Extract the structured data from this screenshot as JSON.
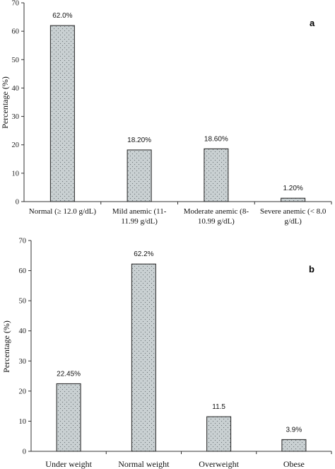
{
  "chart_data": [
    {
      "type": "bar",
      "panel_label": "a",
      "ylabel": "Percentage (%)",
      "ylim": [
        0,
        70
      ],
      "yticks": [
        "0",
        "10",
        "20",
        "30",
        "40",
        "50",
        "60",
        "70"
      ],
      "categories": [
        [
          "Normal (≥ 12.0 g/dL)"
        ],
        [
          "Mild anemic (11-",
          "11.99 g/dL)"
        ],
        [
          "Moderate anemic (8-",
          "10.99 g/dL)"
        ],
        [
          "Severe anemic (< 8.0",
          "g/dL)"
        ]
      ],
      "values": [
        62.0,
        18.2,
        18.6,
        1.2
      ],
      "data_labels": [
        "62.0%",
        "18.20%",
        "18.60%",
        "1.20%"
      ]
    },
    {
      "type": "bar",
      "panel_label": "b",
      "ylabel": "Percentage (%)",
      "ylim": [
        0,
        70
      ],
      "yticks": [
        "0",
        "10",
        "20",
        "30",
        "40",
        "50",
        "60",
        "70"
      ],
      "categories": [
        [
          "Under weight"
        ],
        [
          "Normal weight"
        ],
        [
          "Overweight"
        ],
        [
          "Obese"
        ]
      ],
      "values": [
        22.45,
        62.2,
        11.5,
        3.9
      ],
      "data_labels": [
        "22.45%",
        "62.2%",
        "11.5",
        "3.9%"
      ]
    }
  ]
}
